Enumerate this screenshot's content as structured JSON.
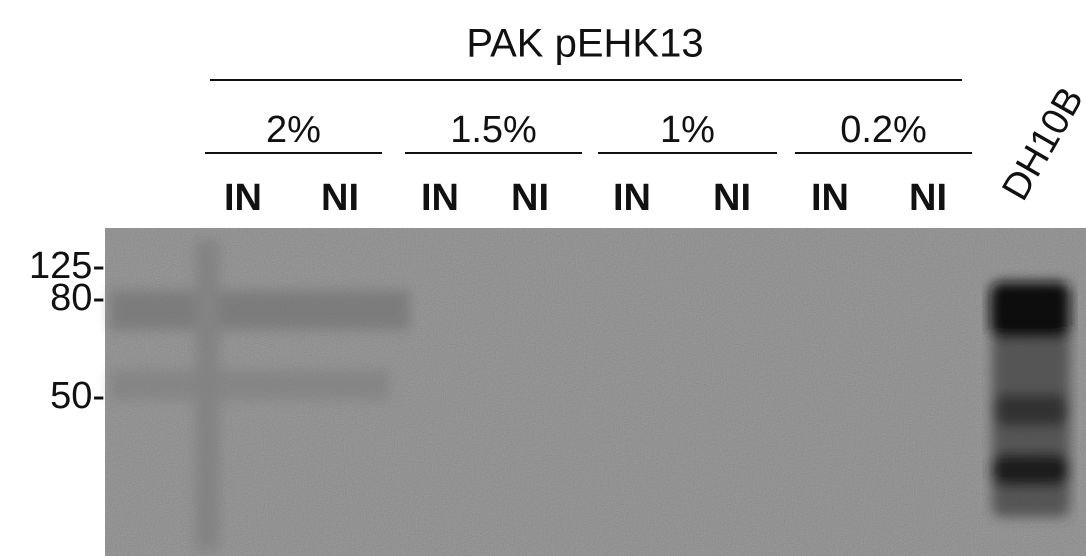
{
  "header": {
    "title": "PAK pEHK13"
  },
  "groups": [
    {
      "label": "2%",
      "lanes": [
        "IN",
        "NI"
      ]
    },
    {
      "label": "1.5%",
      "lanes": [
        "IN",
        "NI"
      ]
    },
    {
      "label": "1%",
      "lanes": [
        "IN",
        "NI"
      ]
    },
    {
      "label": "0.2%",
      "lanes": [
        "IN",
        "NI"
      ]
    }
  ],
  "control_lane": "DH10B",
  "markers": [
    "125-",
    "80-",
    "50-"
  ]
}
